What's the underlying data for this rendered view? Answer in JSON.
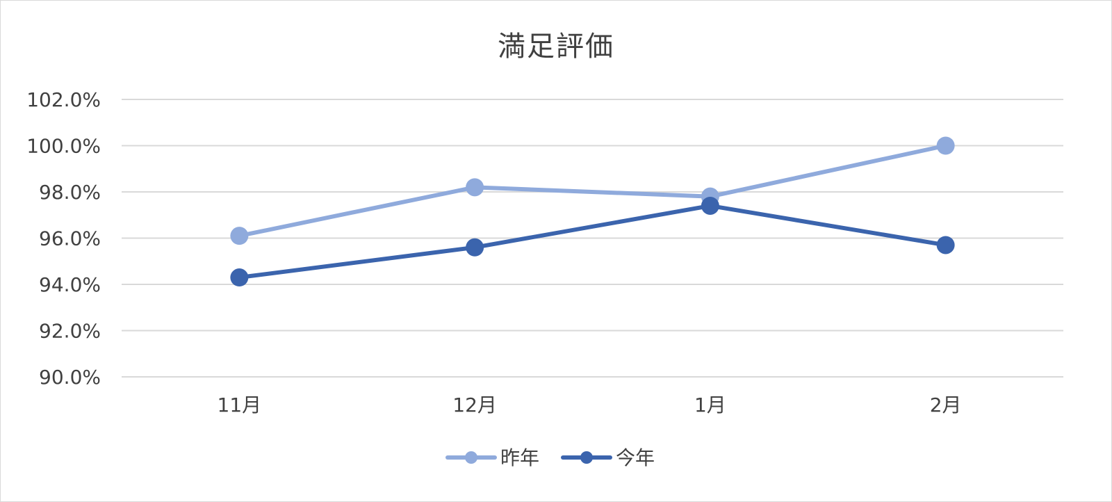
{
  "chart_data": {
    "type": "line",
    "title": "満足評価",
    "xlabel": "",
    "ylabel": "",
    "categories": [
      "11月",
      "12月",
      "1月",
      "2月"
    ],
    "series": [
      {
        "name": "昨年",
        "values": [
          96.1,
          98.2,
          97.8,
          100.0
        ],
        "color": "#8faadc"
      },
      {
        "name": "今年",
        "values": [
          94.3,
          95.6,
          97.4,
          95.7
        ],
        "color": "#3b64ad"
      }
    ],
    "ylim": [
      90.0,
      102.0
    ],
    "y_ticks": [
      "90.0%",
      "92.0%",
      "94.0%",
      "96.0%",
      "98.0%",
      "100.0%",
      "102.0%"
    ],
    "grid": true,
    "legend_position": "bottom"
  }
}
